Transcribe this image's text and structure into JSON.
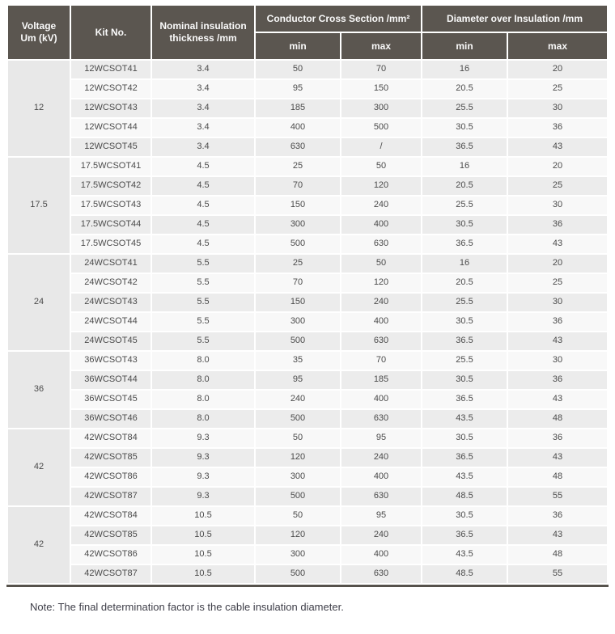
{
  "colors": {
    "header_bg": "#5b5650",
    "header_text": "#fafafa",
    "row_odd": "#ececec",
    "row_even": "#f8f8f8",
    "voltage_bg": "#e8e8e8",
    "text": "#4b4b4b",
    "border_dark": "#56524c",
    "note": "#3e3e48",
    "page_bg": "#ffffff"
  },
  "table": {
    "headers": {
      "voltage": "Voltage\nUm (kV)",
      "kit": "Kit No.",
      "nominal": "Nominal insulation\nthickness /mm",
      "conductor_group": "Conductor Cross Section /mm²",
      "diameter_group": "Diameter over Insulation /mm",
      "ccs_min": "min",
      "ccs_max": "max",
      "dia_min": "min",
      "dia_max": "max"
    },
    "groups": [
      {
        "voltage": "12",
        "rows": [
          [
            "12WCSOT41",
            "3.4",
            "50",
            "70",
            "16",
            "20"
          ],
          [
            "12WCSOT42",
            "3.4",
            "95",
            "150",
            "20.5",
            "25"
          ],
          [
            "12WCSOT43",
            "3.4",
            "185",
            "300",
            "25.5",
            "30"
          ],
          [
            "12WCSOT44",
            "3.4",
            "400",
            "500",
            "30.5",
            "36"
          ],
          [
            "12WCSOT45",
            "3.4",
            "630",
            "/",
            "36.5",
            "43"
          ]
        ]
      },
      {
        "voltage": "17.5",
        "rows": [
          [
            "17.5WCSOT41",
            "4.5",
            "25",
            "50",
            "16",
            "20"
          ],
          [
            "17.5WCSOT42",
            "4.5",
            "70",
            "120",
            "20.5",
            "25"
          ],
          [
            "17.5WCSOT43",
            "4.5",
            "150",
            "240",
            "25.5",
            "30"
          ],
          [
            "17.5WCSOT44",
            "4.5",
            "300",
            "400",
            "30.5",
            "36"
          ],
          [
            "17.5WCSOT45",
            "4.5",
            "500",
            "630",
            "36.5",
            "43"
          ]
        ]
      },
      {
        "voltage": "24",
        "rows": [
          [
            "24WCSOT41",
            "5.5",
            "25",
            "50",
            "16",
            "20"
          ],
          [
            "24WCSOT42",
            "5.5",
            "70",
            "120",
            "20.5",
            "25"
          ],
          [
            "24WCSOT43",
            "5.5",
            "150",
            "240",
            "25.5",
            "30"
          ],
          [
            "24WCSOT44",
            "5.5",
            "300",
            "400",
            "30.5",
            "36"
          ],
          [
            "24WCSOT45",
            "5.5",
            "500",
            "630",
            "36.5",
            "43"
          ]
        ]
      },
      {
        "voltage": "36",
        "rows": [
          [
            "36WCSOT43",
            "8.0",
            "35",
            "70",
            "25.5",
            "30"
          ],
          [
            "36WCSOT44",
            "8.0",
            "95",
            "185",
            "30.5",
            "36"
          ],
          [
            "36WCSOT45",
            "8.0",
            "240",
            "400",
            "36.5",
            "43"
          ],
          [
            "36WCSOT46",
            "8.0",
            "500",
            "630",
            "43.5",
            "48"
          ]
        ]
      },
      {
        "voltage": "42",
        "rows": [
          [
            "42WCSOT84",
            "9.3",
            "50",
            "95",
            "30.5",
            "36"
          ],
          [
            "42WCSOT85",
            "9.3",
            "120",
            "240",
            "36.5",
            "43"
          ],
          [
            "42WCSOT86",
            "9.3",
            "300",
            "400",
            "43.5",
            "48"
          ],
          [
            "42WCSOT87",
            "9.3",
            "500",
            "630",
            "48.5",
            "55"
          ]
        ]
      },
      {
        "voltage": "42",
        "rows": [
          [
            "42WCSOT84",
            "10.5",
            "50",
            "95",
            "30.5",
            "36"
          ],
          [
            "42WCSOT85",
            "10.5",
            "120",
            "240",
            "36.5",
            "43"
          ],
          [
            "42WCSOT86",
            "10.5",
            "300",
            "400",
            "43.5",
            "48"
          ],
          [
            "42WCSOT87",
            "10.5",
            "500",
            "630",
            "48.5",
            "55"
          ]
        ]
      }
    ]
  },
  "note": "Note: The final determination factor is the cable insulation diameter."
}
